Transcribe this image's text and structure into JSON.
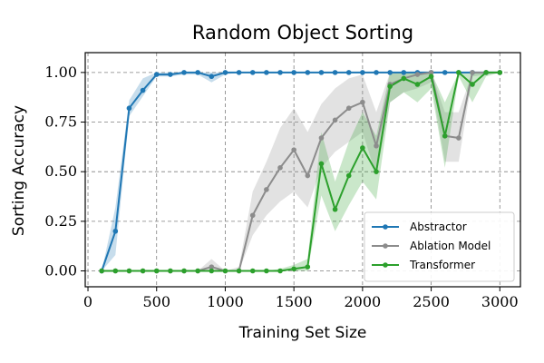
{
  "chart_data": {
    "type": "line",
    "title": "Random Object Sorting",
    "xlabel": "Training Set Size",
    "ylabel": "Sorting Accuracy",
    "xlim": [
      -20,
      3150
    ],
    "ylim": [
      -0.08,
      1.1
    ],
    "xticks": [
      0,
      500,
      1000,
      1500,
      2000,
      2500,
      3000
    ],
    "xtick_labels": [
      "0",
      "500",
      "1000",
      "1500",
      "2000",
      "2500",
      "3000"
    ],
    "yticks": [
      0.0,
      0.25,
      0.5,
      0.75,
      1.0
    ],
    "ytick_labels": [
      "0.00",
      "0.25",
      "0.50",
      "0.75",
      "1.00"
    ],
    "grid": true,
    "legend": "lower-right",
    "x": [
      100,
      200,
      300,
      400,
      500,
      600,
      700,
      800,
      900,
      1000,
      1100,
      1200,
      1300,
      1400,
      1500,
      1600,
      1700,
      1800,
      1900,
      2000,
      2100,
      2200,
      2300,
      2400,
      2500,
      2600,
      2700,
      2800,
      2900,
      3000
    ],
    "series": [
      {
        "name": "Abstractor",
        "color": "#1f77b4",
        "values": [
          0.0,
          0.2,
          0.82,
          0.91,
          0.99,
          0.99,
          1.0,
          1.0,
          0.98,
          1.0,
          1.0,
          1.0,
          1.0,
          1.0,
          1.0,
          1.0,
          1.0,
          1.0,
          1.0,
          1.0,
          1.0,
          1.0,
          1.0,
          1.0,
          1.0,
          1.0,
          1.0,
          1.0,
          1.0,
          1.0
        ],
        "lower": [
          0.0,
          0.08,
          0.78,
          0.88,
          0.98,
          0.98,
          0.99,
          0.99,
          0.95,
          0.99,
          1.0,
          1.0,
          1.0,
          1.0,
          1.0,
          1.0,
          1.0,
          1.0,
          1.0,
          1.0,
          1.0,
          1.0,
          1.0,
          1.0,
          1.0,
          1.0,
          1.0,
          1.0,
          1.0,
          1.0
        ],
        "upper": [
          0.0,
          0.32,
          0.86,
          0.97,
          1.0,
          1.0,
          1.0,
          1.0,
          1.0,
          1.0,
          1.0,
          1.0,
          1.0,
          1.0,
          1.0,
          1.0,
          1.0,
          1.0,
          1.0,
          1.0,
          1.0,
          1.0,
          1.0,
          1.0,
          1.0,
          1.0,
          1.0,
          1.0,
          1.0,
          1.0
        ]
      },
      {
        "name": "Ablation Model",
        "color": "#8c8c8c",
        "values": [
          0.0,
          0.0,
          0.0,
          0.0,
          0.0,
          0.0,
          0.0,
          0.0,
          0.02,
          0.0,
          0.0,
          0.28,
          0.41,
          0.52,
          0.61,
          0.48,
          0.67,
          0.76,
          0.82,
          0.85,
          0.63,
          0.94,
          0.97,
          0.99,
          1.0,
          0.68,
          0.67,
          1.0,
          1.0,
          1.0
        ],
        "lower": [
          0.0,
          0.0,
          0.0,
          0.0,
          0.0,
          0.0,
          0.0,
          0.0,
          0.0,
          0.0,
          0.0,
          0.18,
          0.28,
          0.35,
          0.4,
          0.32,
          0.52,
          0.6,
          0.65,
          0.7,
          0.48,
          0.85,
          0.9,
          0.92,
          0.95,
          0.55,
          0.55,
          0.98,
          0.99,
          1.0
        ],
        "upper": [
          0.0,
          0.0,
          0.0,
          0.0,
          0.0,
          0.0,
          0.0,
          0.0,
          0.06,
          0.0,
          0.02,
          0.4,
          0.55,
          0.72,
          0.82,
          0.7,
          0.84,
          0.92,
          0.97,
          0.99,
          0.8,
          1.0,
          1.0,
          1.0,
          1.0,
          0.8,
          0.8,
          1.0,
          1.0,
          1.0
        ]
      },
      {
        "name": "Transformer",
        "color": "#2ca02c",
        "values": [
          0.0,
          0.0,
          0.0,
          0.0,
          0.0,
          0.0,
          0.0,
          0.0,
          0.0,
          0.0,
          0.0,
          0.0,
          0.0,
          0.0,
          0.01,
          0.02,
          0.54,
          0.31,
          0.48,
          0.62,
          0.5,
          0.93,
          0.97,
          0.94,
          0.98,
          0.68,
          1.0,
          0.94,
          1.0,
          1.0
        ],
        "lower": [
          0.0,
          0.0,
          0.0,
          0.0,
          0.0,
          0.0,
          0.0,
          0.0,
          0.0,
          0.0,
          0.0,
          0.0,
          0.0,
          0.0,
          0.0,
          0.0,
          0.38,
          0.2,
          0.33,
          0.45,
          0.36,
          0.85,
          0.9,
          0.85,
          0.92,
          0.52,
          0.98,
          0.85,
          0.98,
          1.0
        ],
        "upper": [
          0.0,
          0.0,
          0.0,
          0.0,
          0.0,
          0.0,
          0.0,
          0.0,
          0.0,
          0.0,
          0.0,
          0.0,
          0.0,
          0.01,
          0.03,
          0.06,
          0.7,
          0.45,
          0.65,
          0.8,
          0.68,
          1.0,
          1.0,
          1.0,
          1.0,
          0.85,
          1.0,
          1.0,
          1.0,
          1.0
        ]
      }
    ]
  }
}
